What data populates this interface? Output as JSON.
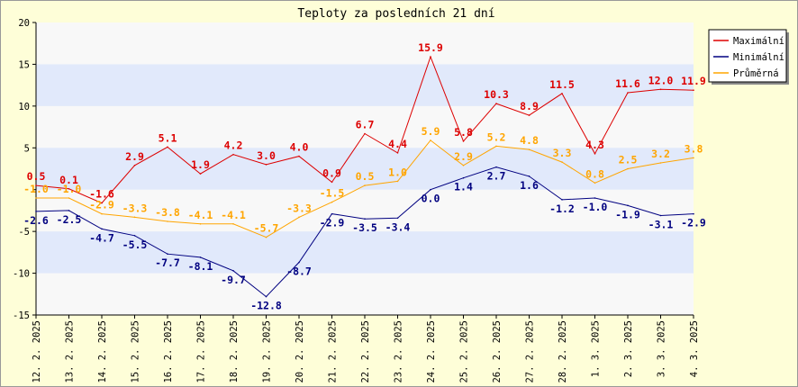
{
  "chart_data": {
    "type": "line",
    "title": "Teploty za posledních 21 dní",
    "xlabel": "",
    "ylabel": "",
    "ylim": [
      -15,
      20
    ],
    "yticks": [
      -15,
      -10,
      -5,
      0,
      5,
      10,
      15,
      20
    ],
    "ytick_labels": [
      "-15",
      "-10",
      "-5",
      "",
      "5",
      "10",
      "15",
      "20"
    ],
    "grid": "horizontal bands",
    "legend_position": "top-right",
    "categories": [
      "12. 2. 2025",
      "13. 2. 2025",
      "14. 2. 2025",
      "15. 2. 2025",
      "16. 2. 2025",
      "17. 2. 2025",
      "18. 2. 2025",
      "19. 2. 2025",
      "20. 2. 2025",
      "21. 2. 2025",
      "22. 2. 2025",
      "23. 2. 2025",
      "24. 2. 2025",
      "25. 2. 2025",
      "26. 2. 2025",
      "27. 2. 2025",
      "28. 2. 2025",
      "1. 3. 2025",
      "2. 3. 2025",
      "3. 3. 2025",
      "4. 3. 2025"
    ],
    "series": [
      {
        "name": "Maximální",
        "color": "#dd0000",
        "values": [
          0.5,
          0.1,
          -1.6,
          2.9,
          5.1,
          1.9,
          4.2,
          3.0,
          4.0,
          0.9,
          6.7,
          4.4,
          15.9,
          5.8,
          10.3,
          8.9,
          11.5,
          4.3,
          11.6,
          12.0,
          11.9
        ],
        "labels": [
          "0.5",
          "0.1",
          "-1.6",
          "2.9",
          "5.1",
          "1.9",
          "4.2",
          "3.0",
          "4.0",
          "0.9",
          "6.7",
          "4.4",
          "15.9",
          "5.8",
          "10.3",
          "8.9",
          "11.5",
          "4.3",
          "11.6",
          "12.0",
          "11.9"
        ]
      },
      {
        "name": "Minimální",
        "color": "#000080",
        "values": [
          -2.6,
          -2.5,
          -4.7,
          -5.5,
          -7.7,
          -8.1,
          -9.7,
          -12.8,
          -8.7,
          -2.9,
          -3.5,
          -3.4,
          0.0,
          1.4,
          2.7,
          1.6,
          -1.2,
          -1.0,
          -1.9,
          -3.1,
          -2.9
        ],
        "labels": [
          "-2.6",
          "-2.5",
          "-4.7",
          "-5.5",
          "-7.7",
          "-8.1",
          "-9.7",
          "-12.8",
          "-8.7",
          "-2.9",
          "-3.5",
          "-3.4",
          "0.0",
          "1.4",
          "2.7",
          "1.6",
          "-1.2",
          "-1.0",
          "-1.9",
          "-3.1",
          "-2.9"
        ]
      },
      {
        "name": "Průměrná",
        "color": "#ffa500",
        "values": [
          -1.0,
          -1.0,
          -2.9,
          -3.3,
          -3.8,
          -4.1,
          -4.1,
          -5.7,
          -3.3,
          -1.5,
          0.5,
          1.0,
          5.9,
          2.9,
          5.2,
          4.8,
          3.3,
          0.8,
          2.5,
          3.2,
          3.8
        ],
        "labels": [
          "-1.0",
          "-1.0",
          "-2.9",
          "-3.3",
          "-3.8",
          "-4.1",
          "-4.1",
          "-5.7",
          "-3.3",
          "-1.5",
          "0.5",
          "1.0",
          "5.9",
          "2.9",
          "5.2",
          "4.8",
          "3.3",
          "0.8",
          "2.5",
          "3.2",
          "3.8"
        ]
      }
    ]
  }
}
